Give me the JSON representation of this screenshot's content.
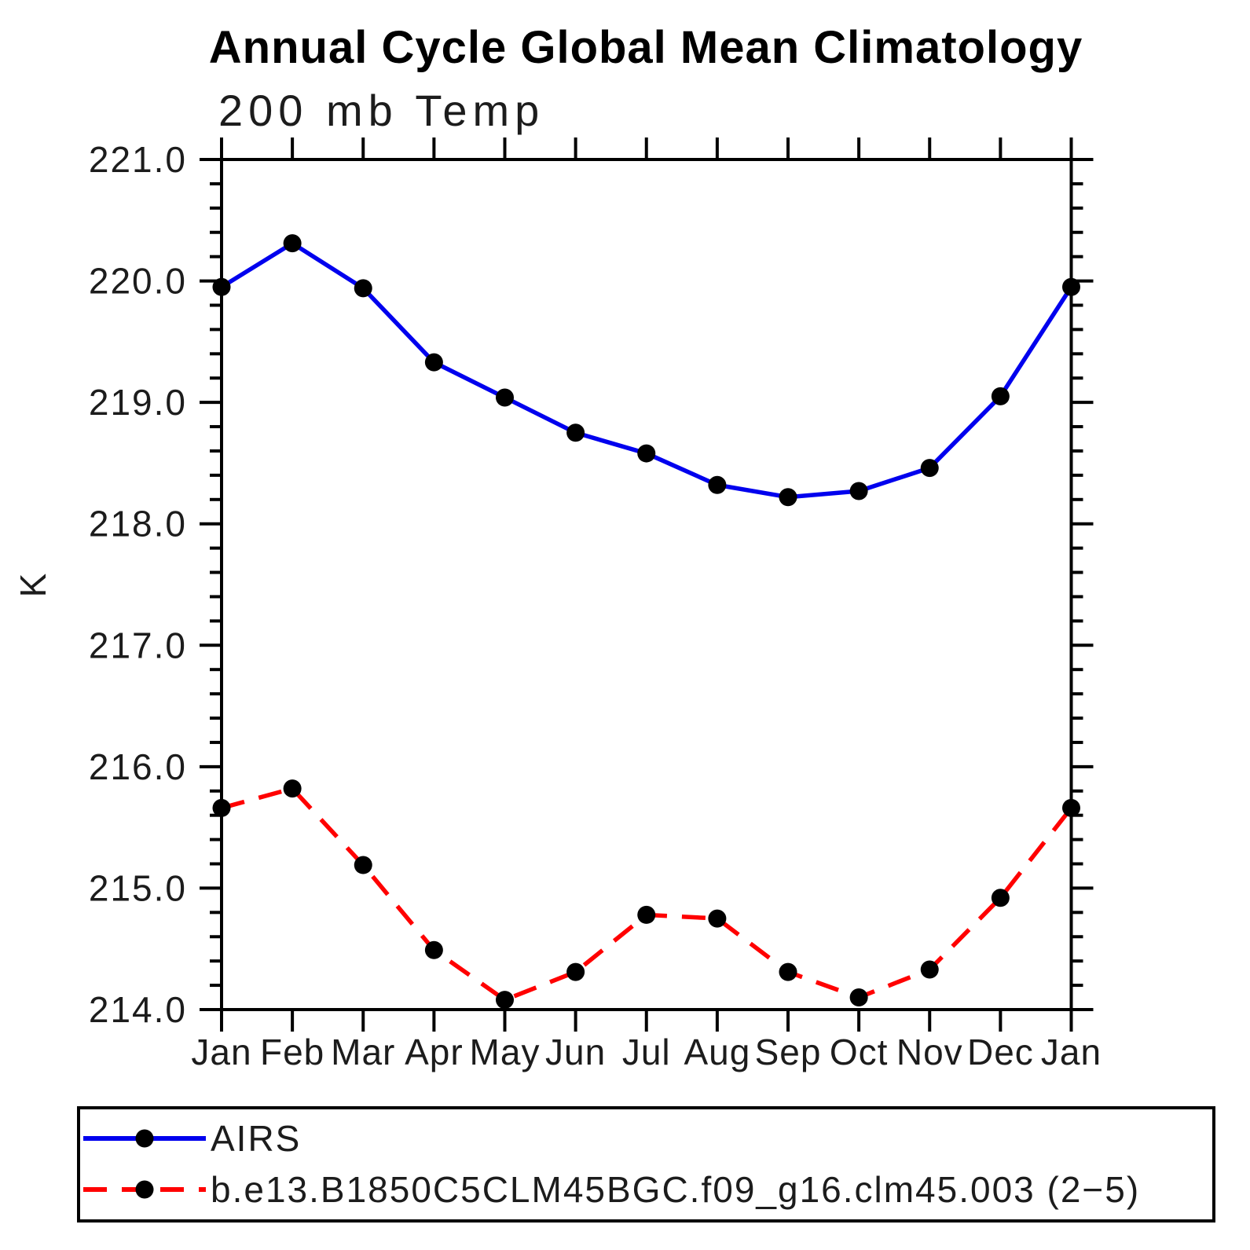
{
  "chart_data": {
    "type": "line",
    "title": "Annual Cycle Global Mean Climatology",
    "subtitle": "200 mb Temp",
    "ylabel": "K",
    "categories": [
      "Jan",
      "Feb",
      "Mar",
      "Apr",
      "May",
      "Jun",
      "Jul",
      "Aug",
      "Sep",
      "Oct",
      "Nov",
      "Dec",
      "Jan"
    ],
    "ylim": [
      214.0,
      221.0
    ],
    "ytick_step": 1.0,
    "minor_tick_step": 0.2,
    "grid": false,
    "legend_position": "bottom",
    "marker": "filled-circle",
    "marker_color": "#000000",
    "series": [
      {
        "name": "AIRS",
        "color": "#0000ee",
        "style": "solid",
        "values": [
          219.95,
          220.31,
          219.94,
          219.33,
          219.04,
          218.75,
          218.58,
          218.32,
          218.22,
          218.27,
          218.46,
          219.05,
          219.95
        ]
      },
      {
        "name": "b.e13.B1850C5CLM45BGC.f09_g16.clm45.003 (2−5)",
        "color": "#ff0000",
        "style": "dashed",
        "values": [
          215.66,
          215.82,
          215.19,
          214.49,
          214.08,
          214.31,
          214.78,
          214.75,
          214.31,
          214.1,
          214.33,
          214.92,
          215.66
        ]
      }
    ]
  }
}
